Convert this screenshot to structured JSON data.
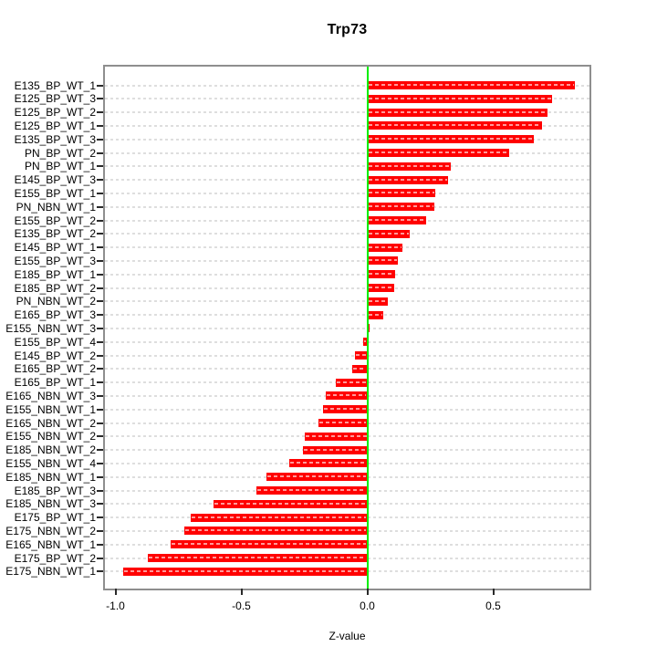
{
  "chart_data": {
    "type": "bar",
    "orientation": "horizontal",
    "title": "Trp73",
    "xlabel": "Z-value",
    "ylabel": "",
    "legend": "none",
    "grid": "dotted horizontal line per category",
    "xlim": [
      -1.04,
      0.9
    ],
    "x_ticks": [
      {
        "label": "-1.0",
        "value": -1.0
      },
      {
        "label": "-0.5",
        "value": -0.5
      },
      {
        "label": "0.0",
        "value": 0.0
      },
      {
        "label": "0.5",
        "value": 0.5
      }
    ],
    "categories": [
      "E135_BP_WT_1",
      "E125_BP_WT_3",
      "E125_BP_WT_2",
      "E125_BP_WT_1",
      "E135_BP_WT_3",
      "PN_BP_WT_2",
      "PN_BP_WT_1",
      "E145_BP_WT_3",
      "E155_BP_WT_1",
      "PN_NBN_WT_1",
      "E155_BP_WT_2",
      "E135_BP_WT_2",
      "E145_BP_WT_1",
      "E155_BP_WT_3",
      "E185_BP_WT_1",
      "E185_BP_WT_2",
      "PN_NBN_WT_2",
      "E165_BP_WT_3",
      "E155_NBN_WT_3",
      "E155_BP_WT_4",
      "E145_BP_WT_2",
      "E165_BP_WT_2",
      "E165_BP_WT_1",
      "E165_NBN_WT_3",
      "E155_NBN_WT_1",
      "E165_NBN_WT_2",
      "E155_NBN_WT_2",
      "E185_NBN_WT_2",
      "E155_NBN_WT_4",
      "E185_NBN_WT_1",
      "E185_BP_WT_3",
      "E185_NBN_WT_3",
      "E175_BP_WT_1",
      "E175_NBN_WT_2",
      "E165_NBN_WT_1",
      "E175_BP_WT_2",
      "E175_NBN_WT_1"
    ],
    "values": [
      0.825,
      0.735,
      0.715,
      0.695,
      0.66,
      0.565,
      0.33,
      0.32,
      0.27,
      0.265,
      0.235,
      0.17,
      0.14,
      0.12,
      0.112,
      0.107,
      0.08,
      0.065,
      0.01,
      -0.015,
      -0.05,
      -0.06,
      -0.125,
      -0.165,
      -0.175,
      -0.195,
      -0.25,
      -0.255,
      -0.31,
      -0.4,
      -0.44,
      -0.61,
      -0.7,
      -0.725,
      -0.78,
      -0.87,
      -0.97
    ],
    "colors": {
      "bar": "#ff0000",
      "zero_line": "#00ee00",
      "grid": "#dedede",
      "box_border": "#8e8e8e",
      "text": "#000000"
    }
  }
}
